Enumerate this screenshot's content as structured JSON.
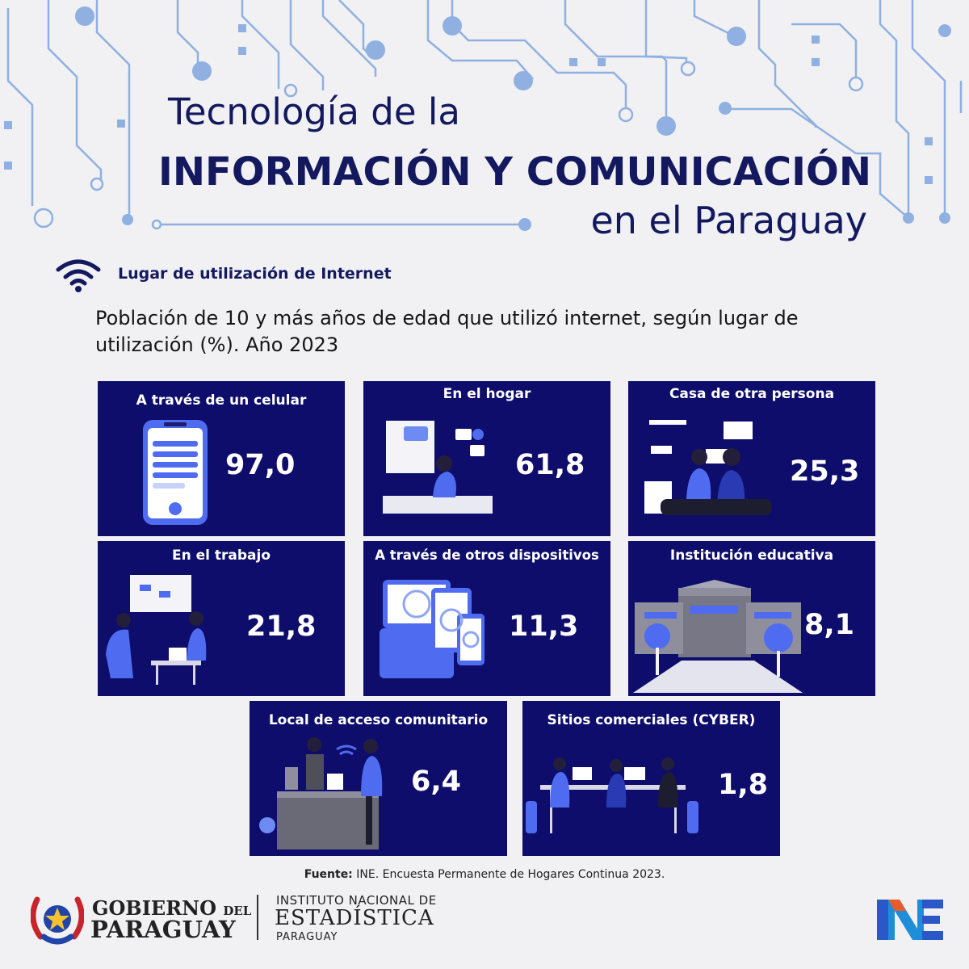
{
  "header": {
    "title_line1": "Tecnología de la",
    "title_line2": "INFORMACIÓN  Y COMUNICACIÓN",
    "title_line3": "en el Paraguay"
  },
  "section": {
    "icon": "wifi-icon",
    "title": "Lugar de utilización de Internet"
  },
  "description": "Población de 10 y más años de edad que utilizó internet, según lugar de utilización (%). Año 2023",
  "colors": {
    "card_background": "#0e0d6c",
    "title": "#14195f",
    "accent": "#4f6cf0",
    "circuit": "#8fb0e0"
  },
  "cards": [
    {
      "label": "A través de un celular",
      "value": "97,0",
      "illustration": "smartphone-icon"
    },
    {
      "label": "En el hogar",
      "value": "61,8",
      "illustration": "home-icon"
    },
    {
      "label": "Casa de otra persona",
      "value": "25,3",
      "illustration": "people-icon"
    },
    {
      "label": "En el trabajo",
      "value": "21,8",
      "illustration": "office-icon"
    },
    {
      "label": "A través de otros dispositivos",
      "value": "11,3",
      "illustration": "devices-icon"
    },
    {
      "label": "Institución educativa",
      "value": "8,1",
      "illustration": "school-icon"
    },
    {
      "label": "Local de acceso comunitario",
      "value": "6,4",
      "illustration": "community-icon"
    },
    {
      "label": "Sitios comerciales (CYBER)",
      "value": "1,8",
      "illustration": "cyber-icon"
    }
  ],
  "footer": {
    "source_label": "Fuente:",
    "source_text": " INE. Encuesta Permanente de Hogares Continua 2023.",
    "gov_line1": "GOBIERNO",
    "gov_line1_small": "DEL",
    "gov_line2": "PARAGUAY",
    "ine_line1": "INSTITUTO NACIONAL DE",
    "ine_line2": "ESTADÍSTICA",
    "ine_line3": "PARAGUAY"
  }
}
